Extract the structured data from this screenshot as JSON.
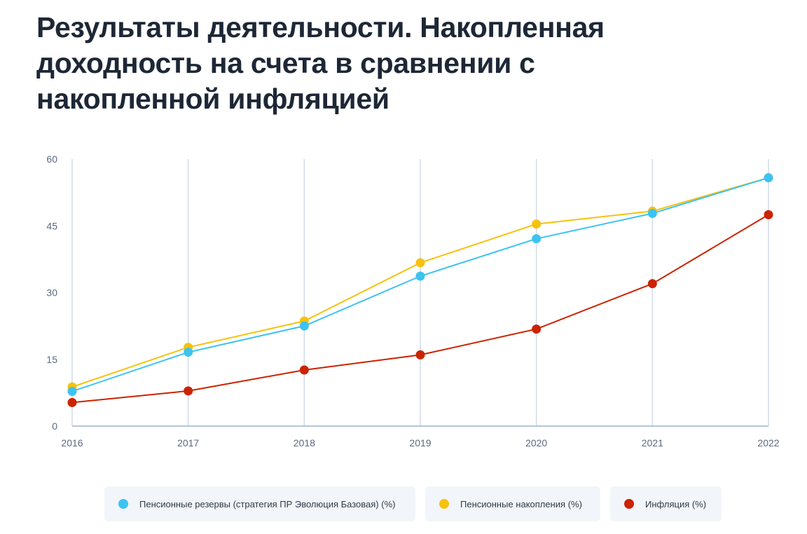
{
  "title": "Результаты деятельности. Накопленная доходность на счета в сравнении с накопленной инфляцией",
  "chart_data": {
    "type": "line",
    "x": [
      "2016",
      "2017",
      "2018",
      "2019",
      "2020",
      "2021",
      "2022"
    ],
    "ylim": [
      0,
      60
    ],
    "yticks": [
      "0",
      "15",
      "30",
      "45",
      "60"
    ],
    "grid": "vertical",
    "legend_position": "bottom",
    "series": [
      {
        "name": "Пенсионные резервы (стратегия ПР Эволюция Базовая) (%)",
        "color": "#3cc3f2",
        "values": [
          7.8,
          16.6,
          22.5,
          33.7,
          42.1,
          47.8,
          55.8
        ]
      },
      {
        "name": "Пенсионные накопления (%)",
        "color": "#f7c20c",
        "values": [
          8.8,
          17.7,
          23.6,
          36.7,
          45.4,
          48.3,
          55.8
        ]
      },
      {
        "name": "Инфляция (%)",
        "color": "#cc2200",
        "values": [
          5.3,
          7.9,
          12.6,
          16.0,
          21.8,
          32.0,
          47.5
        ]
      }
    ]
  },
  "colors": {
    "grid": "#cfdce9",
    "axis": "#9fb4c9",
    "legend_bg": "#f2f5f9"
  }
}
